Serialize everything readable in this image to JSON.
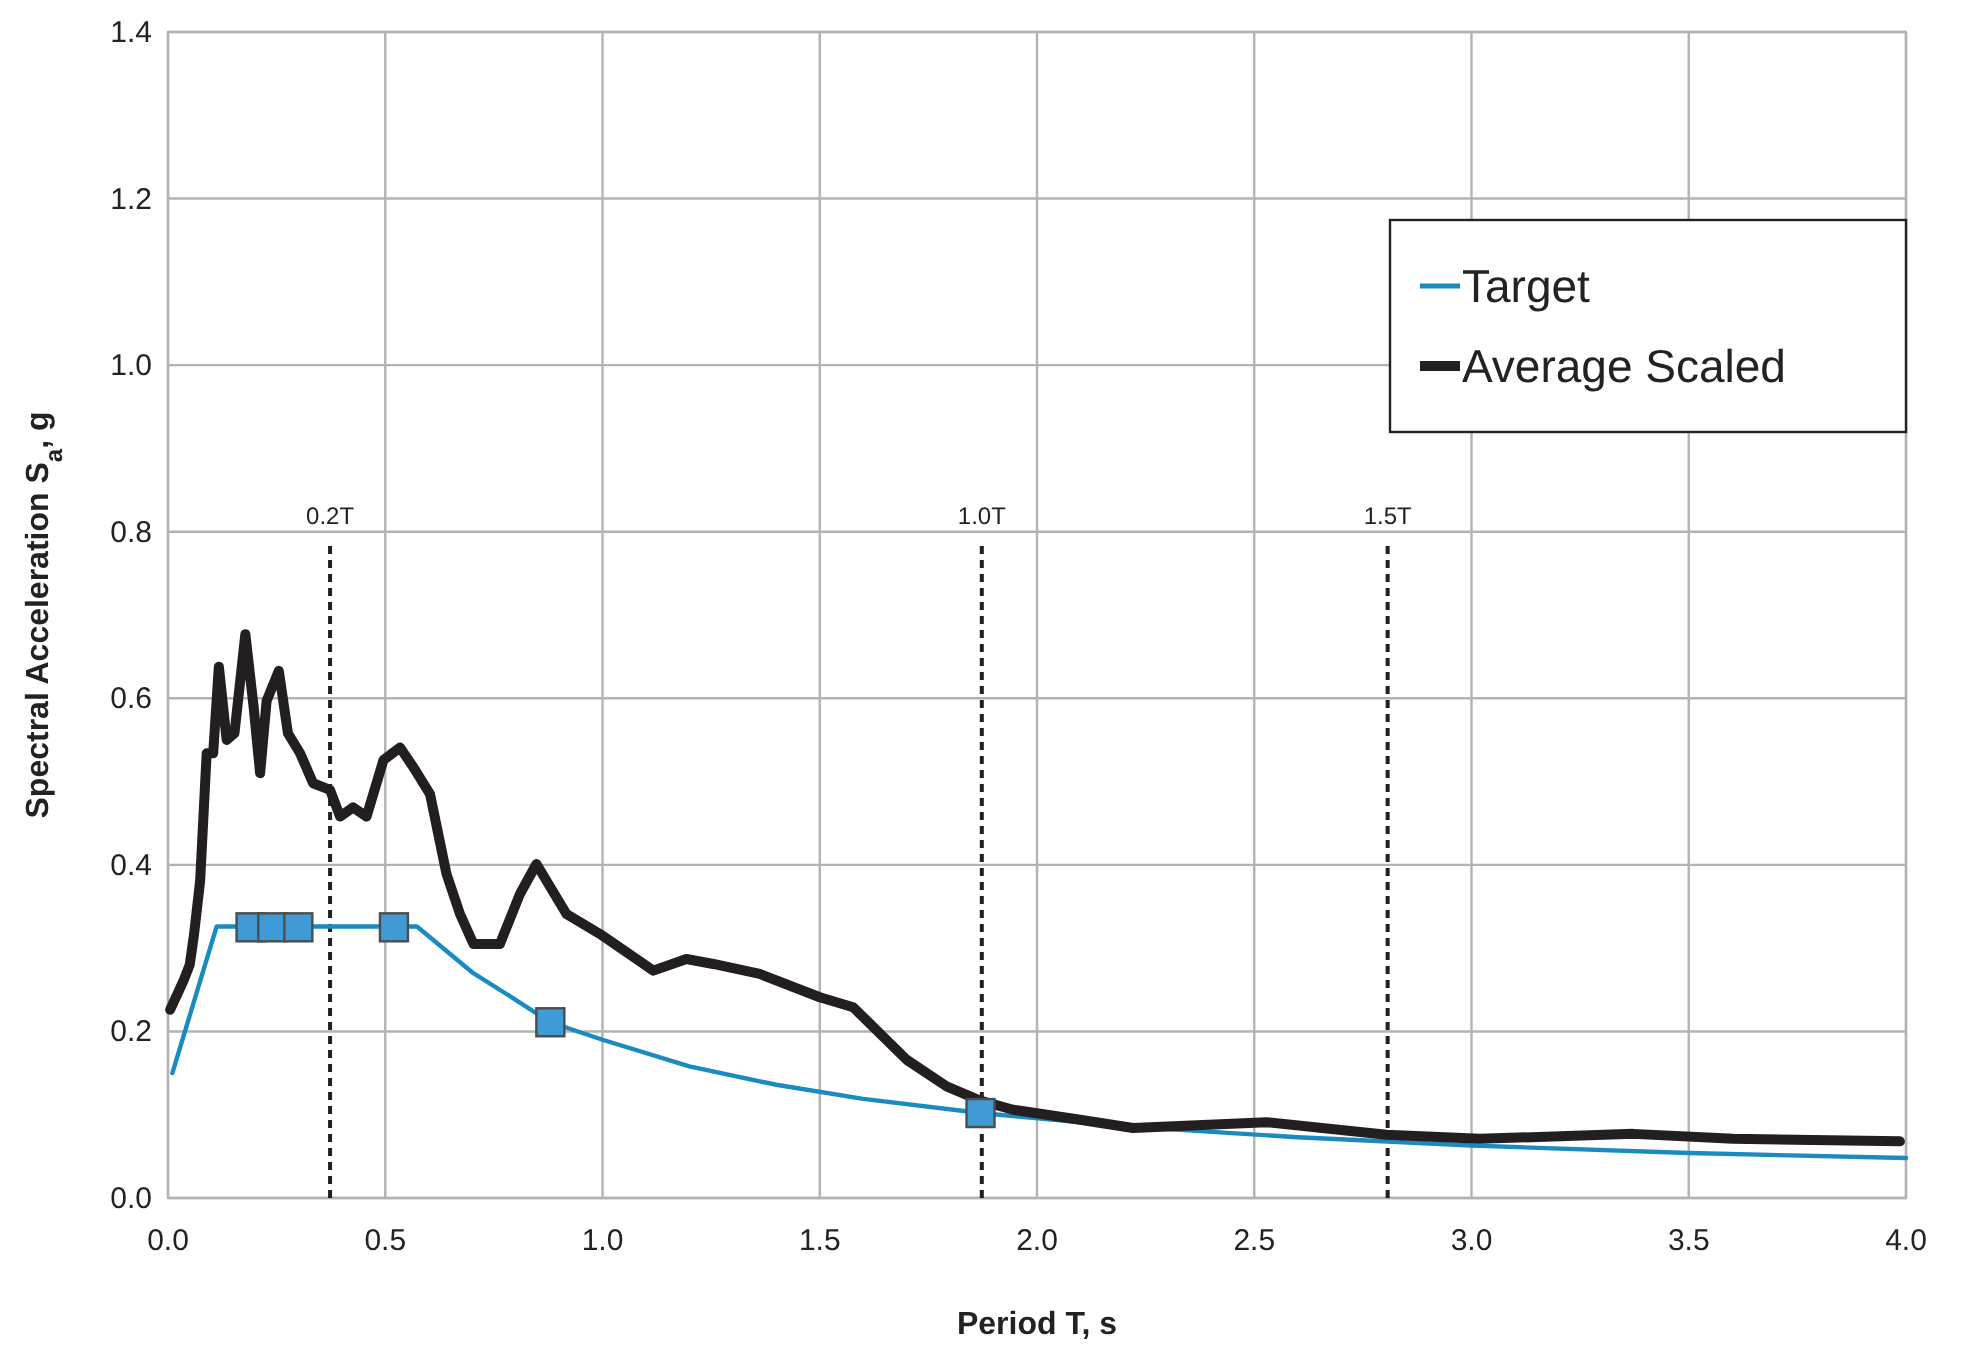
{
  "chart_data": {
    "type": "line",
    "xlabel": "Period T, s",
    "ylabel": "Spectral Acceleration S$_{a}$, g",
    "xlim": [
      0,
      4
    ],
    "ylim": [
      0,
      1.4
    ],
    "xticks": [
      {
        "value": 0,
        "label": "0.0"
      },
      {
        "value": 0.5,
        "label": "0.5"
      },
      {
        "value": 1,
        "label": "1.0"
      },
      {
        "value": 1.5,
        "label": "1.5"
      },
      {
        "value": 2,
        "label": "2.0"
      },
      {
        "value": 2.5,
        "label": "2.5"
      },
      {
        "value": 3,
        "label": "3.0"
      },
      {
        "value": 3.5,
        "label": "3.5"
      },
      {
        "value": 4,
        "label": "4.0"
      }
    ],
    "yticks": [
      {
        "value": 0,
        "label": "0.0"
      },
      {
        "value": 0.2,
        "label": "0.2"
      },
      {
        "value": 0.4,
        "label": "0.4"
      },
      {
        "value": 0.6,
        "label": "0.6"
      },
      {
        "value": 0.8,
        "label": "0.8"
      },
      {
        "value": 1,
        "label": "1.0"
      },
      {
        "value": 1.2,
        "label": "1.2"
      },
      {
        "value": 1.4,
        "label": "1.4"
      }
    ],
    "grid": true,
    "legend": "top right",
    "marker": "none",
    "line_style": "solid",
    "series": [
      {
        "name": "Target",
        "type": "line",
        "color": "#1a8bc0",
        "x": [
          0.01,
          0.112,
          0.573,
          0.7,
          0.8,
          0.88,
          1.0,
          1.2,
          1.4,
          1.6,
          1.87,
          2.2,
          2.6,
          3.0,
          3.5,
          4.0
        ],
        "values": [
          0.15,
          0.326,
          0.326,
          0.271,
          0.238,
          0.211,
          0.19,
          0.158,
          0.136,
          0.119,
          0.102,
          0.086,
          0.073,
          0.063,
          0.054,
          0.048
        ]
      },
      {
        "name": "Average Scaled",
        "type": "line",
        "color": "#231f20",
        "x": [
          0.005,
          0.035,
          0.05,
          0.06,
          0.074,
          0.089,
          0.104,
          0.117,
          0.135,
          0.153,
          0.178,
          0.197,
          0.212,
          0.227,
          0.255,
          0.276,
          0.304,
          0.334,
          0.373,
          0.396,
          0.426,
          0.457,
          0.496,
          0.534,
          0.565,
          0.603,
          0.641,
          0.672,
          0.703,
          0.764,
          0.81,
          0.848,
          0.917,
          0.994,
          1.117,
          1.193,
          1.255,
          1.362,
          1.5,
          1.577,
          1.7,
          1.792,
          1.869,
          1.945,
          2.099,
          2.221,
          2.528,
          2.804,
          3.019,
          3.372,
          3.602,
          3.986
        ],
        "values": [
          0.226,
          0.26,
          0.28,
          0.317,
          0.381,
          0.534,
          0.534,
          0.638,
          0.55,
          0.558,
          0.677,
          0.59,
          0.51,
          0.597,
          0.633,
          0.558,
          0.534,
          0.498,
          0.49,
          0.458,
          0.469,
          0.458,
          0.526,
          0.541,
          0.517,
          0.485,
          0.389,
          0.341,
          0.305,
          0.305,
          0.365,
          0.401,
          0.341,
          0.317,
          0.273,
          0.287,
          0.281,
          0.269,
          0.241,
          0.229,
          0.166,
          0.134,
          0.117,
          0.106,
          0.094,
          0.084,
          0.091,
          0.076,
          0.071,
          0.077,
          0.071,
          0.068
        ]
      },
      {
        "type": "scatter",
        "marker": "square",
        "color": "#3f9ad6",
        "x": [
          0.19,
          0.24,
          0.3,
          0.52,
          0.88,
          1.87
        ],
        "values": [
          0.325,
          0.325,
          0.325,
          0.325,
          0.211,
          0.102
        ]
      }
    ],
    "ref_lines": [
      {
        "axis": "x",
        "value": 0.373,
        "label": "0.2T",
        "color": "#231f20",
        "line_style": "dashed"
      },
      {
        "axis": "x",
        "value": 1.873,
        "label": "1.0T",
        "color": "#231f20",
        "line_style": "dashed"
      },
      {
        "axis": "x",
        "value": 2.807,
        "label": "1.5T",
        "color": "#231f20",
        "line_style": "dashed"
      }
    ]
  }
}
